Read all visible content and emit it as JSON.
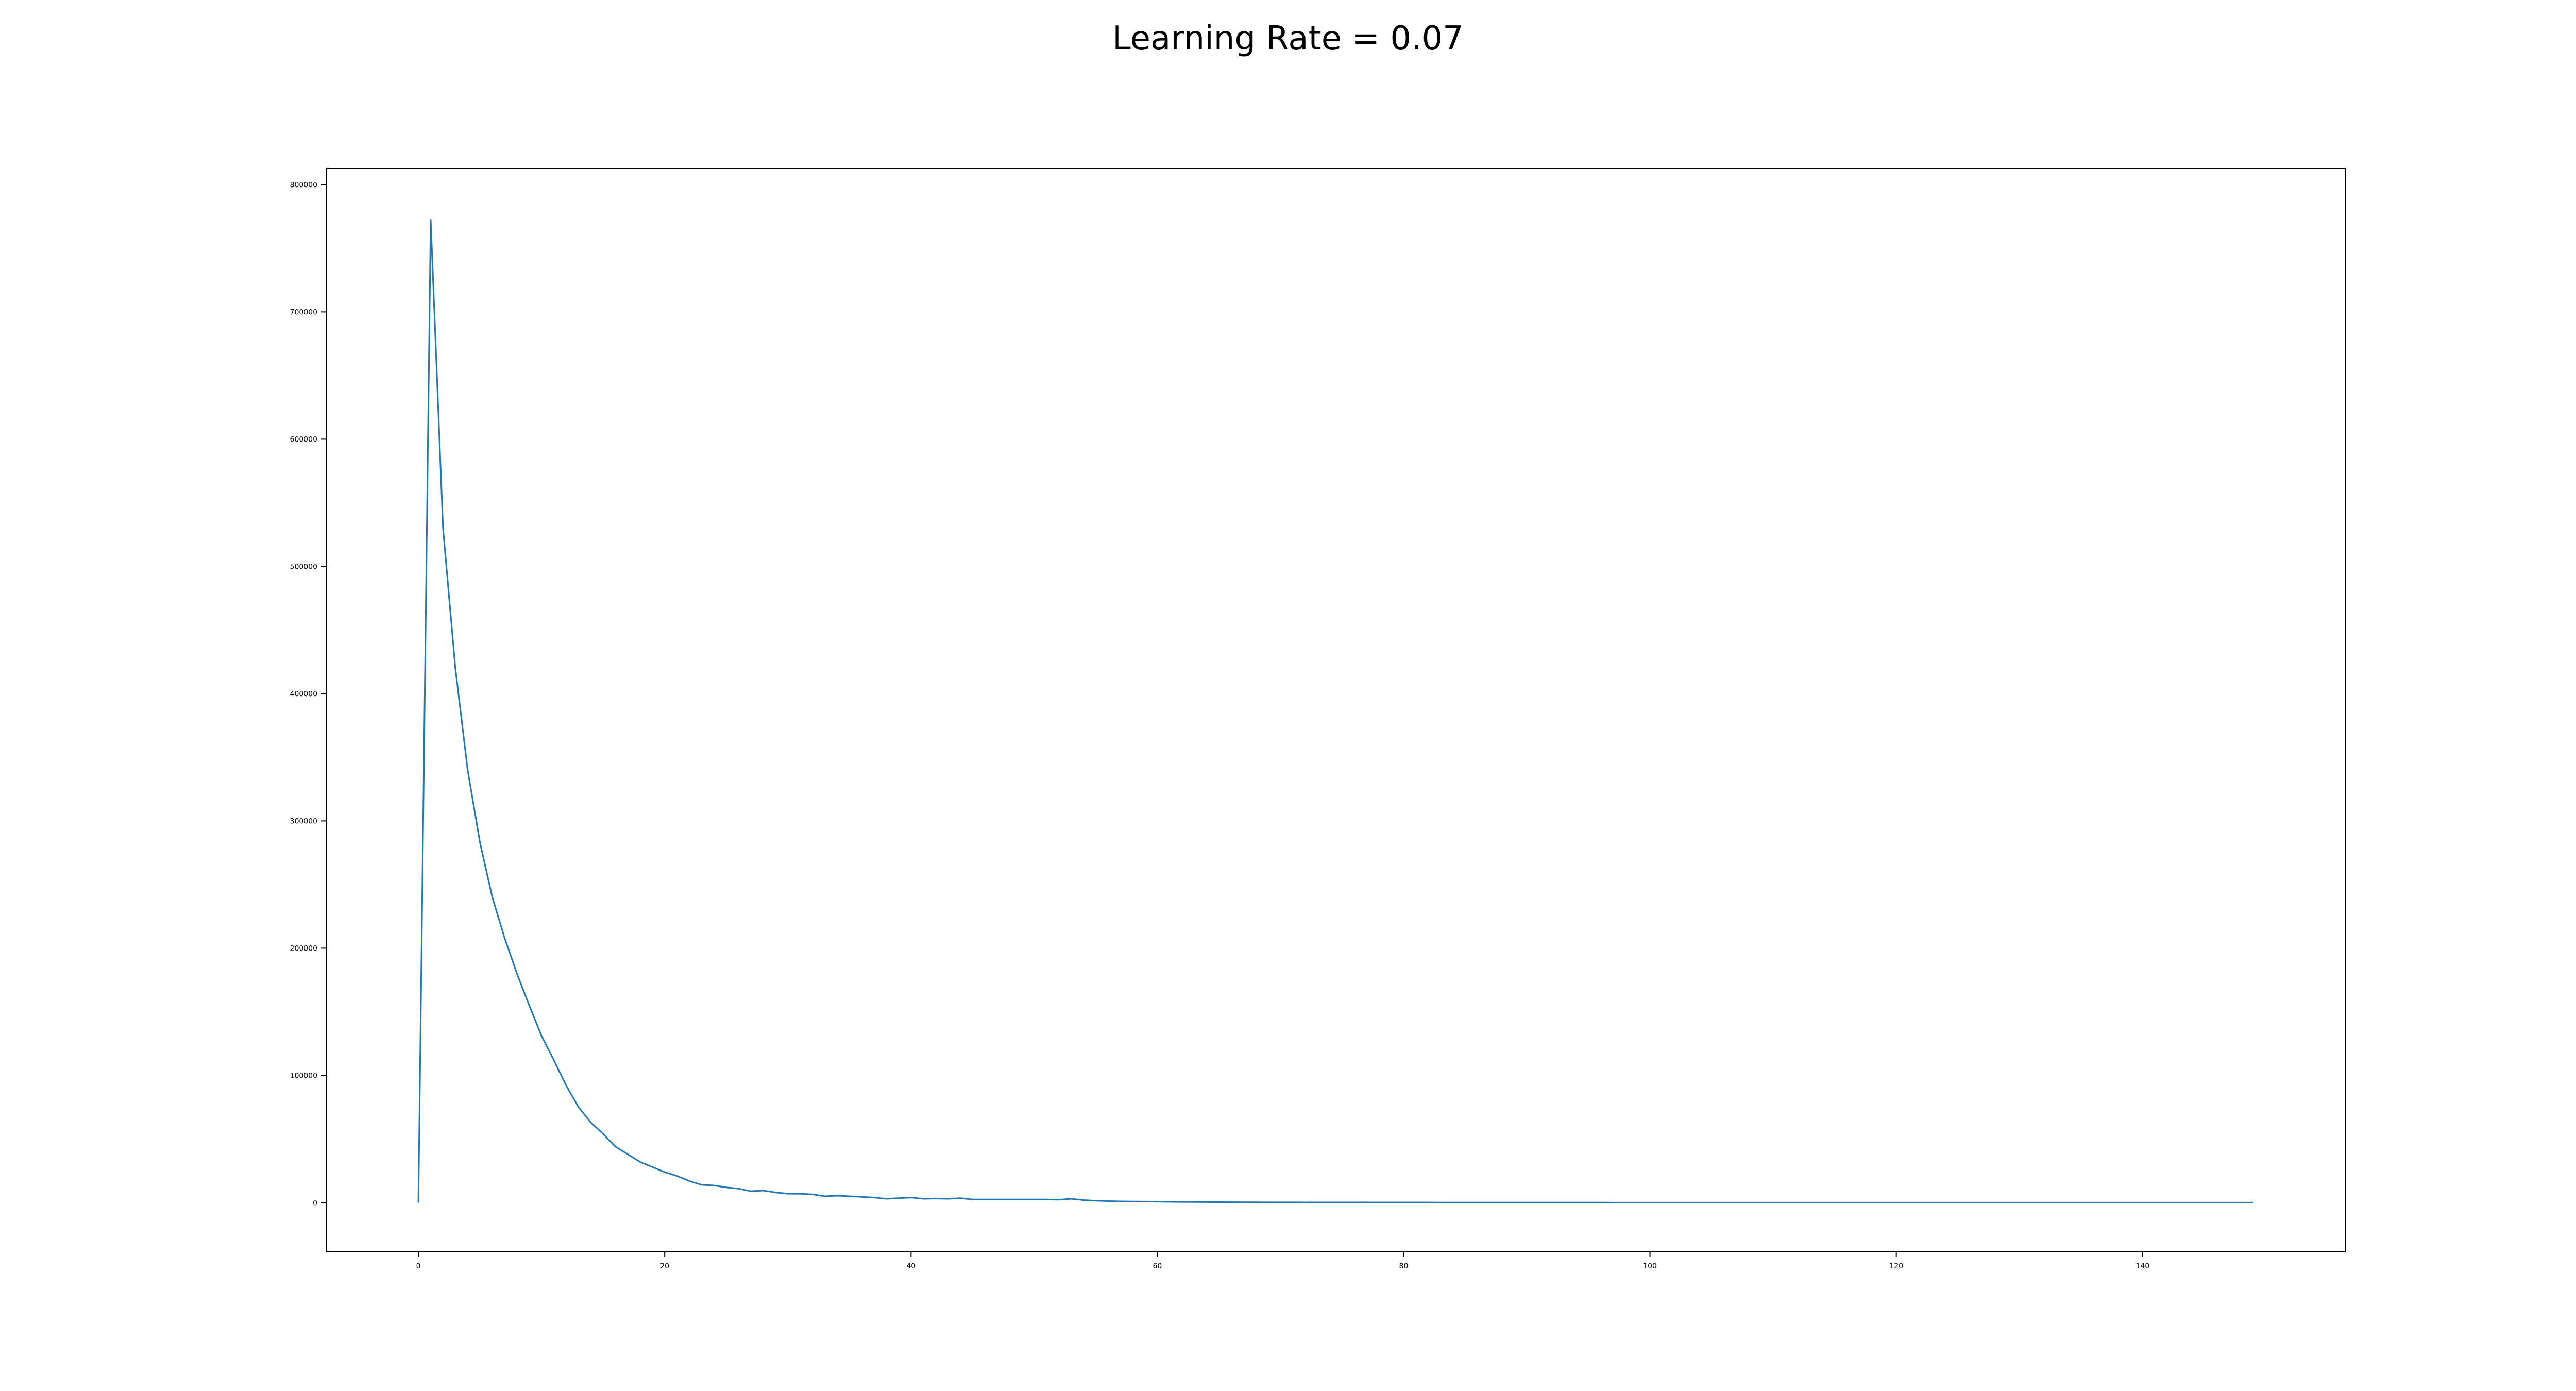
{
  "chart_data": {
    "type": "line",
    "title": "Learning Rate = 0.07",
    "xlabel": "",
    "ylabel": "",
    "xlim": [
      -7.45,
      156.45
    ],
    "ylim": [
      -38700,
      812700
    ],
    "xticks": [
      0,
      20,
      40,
      60,
      80,
      100,
      120,
      140
    ],
    "yticks": [
      0,
      100000,
      200000,
      300000,
      400000,
      500000,
      600000,
      700000,
      800000
    ],
    "grid": false,
    "legend": "none",
    "color": "#1f77b4",
    "x": [
      0,
      1,
      2,
      3,
      4,
      5,
      6,
      7,
      8,
      9,
      10,
      11,
      12,
      13,
      14,
      15,
      16,
      17,
      18,
      19,
      20,
      21,
      22,
      23,
      24,
      25,
      26,
      27,
      28,
      29,
      30,
      31,
      32,
      33,
      34,
      35,
      36,
      37,
      38,
      39,
      40,
      41,
      42,
      43,
      44,
      45,
      46,
      47,
      48,
      49,
      50,
      51,
      52,
      53,
      54,
      55,
      56,
      57,
      58,
      59,
      60,
      61,
      62,
      63,
      64,
      65,
      66,
      67,
      68,
      69,
      70,
      71,
      72,
      73,
      74,
      75,
      76,
      77,
      78,
      79,
      80,
      81,
      82,
      83,
      84,
      85,
      86,
      87,
      88,
      89,
      90,
      91,
      92,
      93,
      94,
      95,
      96,
      97,
      98,
      99,
      100,
      101,
      102,
      103,
      104,
      105,
      106,
      107,
      108,
      109,
      110,
      111,
      112,
      113,
      114,
      115,
      116,
      117,
      118,
      119,
      120,
      121,
      122,
      123,
      124,
      125,
      126,
      127,
      128,
      129,
      130,
      131,
      132,
      133,
      134,
      135,
      136,
      137,
      138,
      139,
      140,
      141,
      142,
      143,
      144,
      145,
      146,
      147,
      148,
      149
    ],
    "y": [
      0,
      772000,
      530000,
      420000,
      340000,
      283000,
      240000,
      208000,
      180000,
      155000,
      131000,
      112000,
      92000,
      75000,
      63000,
      54000,
      44000,
      38000,
      32000,
      28000,
      24000,
      21000,
      17000,
      14000,
      13500,
      12000,
      11000,
      9000,
      9500,
      8000,
      7000,
      7000,
      6500,
      5000,
      5500,
      5000,
      4500,
      4000,
      3000,
      3500,
      4000,
      3000,
      3200,
      3000,
      3500,
      2500,
      2500,
      2500,
      2500,
      2500,
      2500,
      2500,
      2300,
      3000,
      2000,
      1500,
      1200,
      1000,
      900,
      800,
      700,
      600,
      500,
      450,
      400,
      350,
      300,
      280,
      260,
      240,
      220,
      200,
      190,
      180,
      170,
      160,
      150,
      140,
      130,
      120,
      110,
      100,
      95,
      90,
      85,
      80,
      75,
      70,
      65,
      60,
      55,
      50,
      48,
      46,
      44,
      42,
      40,
      38,
      36,
      34,
      32,
      30,
      28,
      26,
      24,
      22,
      20,
      19,
      18,
      17,
      16,
      15,
      14,
      13,
      12,
      11,
      10,
      9,
      8,
      7,
      6,
      5,
      5,
      4,
      4,
      3,
      3,
      2,
      2,
      2,
      1,
      1,
      1,
      1,
      1,
      0,
      0,
      0,
      0,
      0,
      0,
      0,
      0,
      0,
      0,
      0,
      0,
      0,
      0,
      0
    ]
  }
}
